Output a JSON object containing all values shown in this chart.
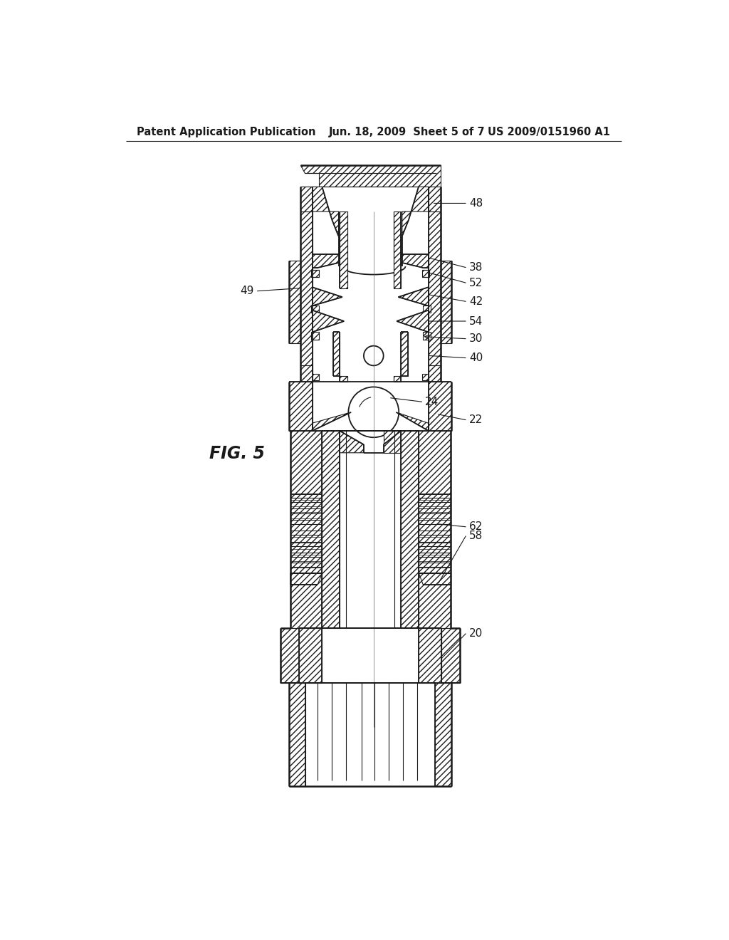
{
  "title_left": "Patent Application Publication",
  "title_center": "Jun. 18, 2009  Sheet 5 of 7",
  "title_right": "US 2009/0151960 A1",
  "fig_label": "FIG. 5",
  "bg_color": "#ffffff",
  "line_color": "#1a1a1a",
  "text_color": "#1a1a1a",
  "header_fontsize": 10.5,
  "label_fontsize": 11,
  "fig_label_fontsize": 17
}
